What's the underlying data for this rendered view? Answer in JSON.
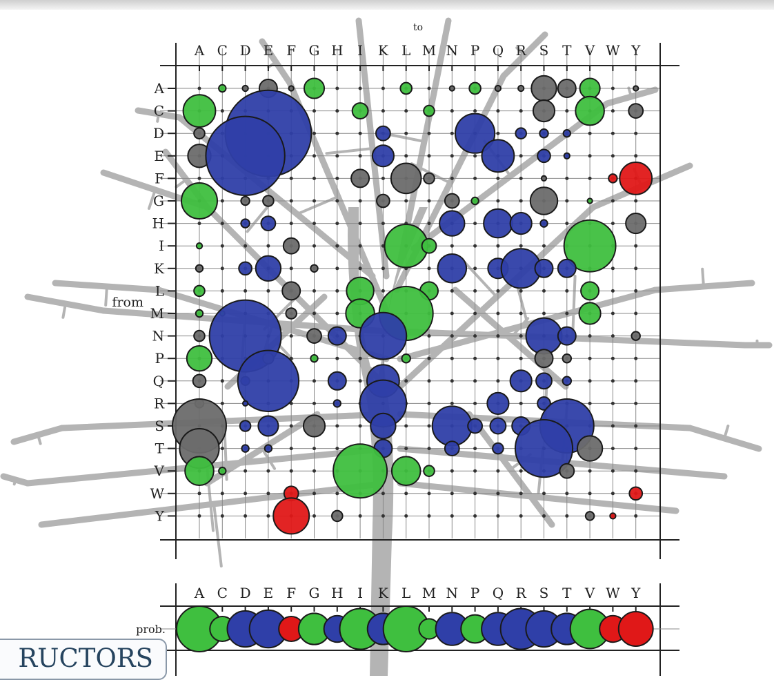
{
  "page_tab": {
    "label": "RUCTORS"
  },
  "chart_data": [
    {
      "type": "scatter",
      "title": "",
      "xlabel": "to",
      "ylabel": "from",
      "columns": [
        "A",
        "C",
        "D",
        "E",
        "F",
        "G",
        "H",
        "I",
        "K",
        "L",
        "M",
        "N",
        "P",
        "Q",
        "R",
        "S",
        "T",
        "V",
        "W",
        "Y"
      ],
      "rows": [
        "A",
        "C",
        "D",
        "E",
        "F",
        "G",
        "H",
        "I",
        "K",
        "L",
        "M",
        "N",
        "P",
        "Q",
        "R",
        "S",
        "T",
        "V",
        "W",
        "Y"
      ],
      "grid": true,
      "colors": {
        "green": "#3fbf3f",
        "blue": "#2f3fa8",
        "gray": "#6b6b6b",
        "red": "#e01818",
        "tree": "#b4b4b4"
      },
      "points": [
        [
          "A",
          "C",
          0.1,
          "green"
        ],
        [
          "A",
          "D",
          0.08,
          "gray"
        ],
        [
          "A",
          "E",
          0.25,
          "gray"
        ],
        [
          "A",
          "F",
          0.07,
          "gray"
        ],
        [
          "A",
          "G",
          0.28,
          "green"
        ],
        [
          "A",
          "L",
          0.16,
          "green"
        ],
        [
          "A",
          "N",
          0.07,
          "gray"
        ],
        [
          "A",
          "P",
          0.16,
          "green"
        ],
        [
          "A",
          "Q",
          0.08,
          "gray"
        ],
        [
          "A",
          "R",
          0.08,
          "gray"
        ],
        [
          "A",
          "S",
          0.35,
          "gray"
        ],
        [
          "A",
          "T",
          0.25,
          "gray"
        ],
        [
          "A",
          "V",
          0.28,
          "green"
        ],
        [
          "A",
          "Y",
          0.07,
          "gray"
        ],
        [
          "C",
          "A",
          0.45,
          "green"
        ],
        [
          "C",
          "I",
          0.22,
          "green"
        ],
        [
          "C",
          "M",
          0.15,
          "green"
        ],
        [
          "C",
          "S",
          0.3,
          "gray"
        ],
        [
          "C",
          "V",
          0.4,
          "green"
        ],
        [
          "C",
          "Y",
          0.2,
          "gray"
        ],
        [
          "D",
          "A",
          0.15,
          "gray"
        ],
        [
          "D",
          "E",
          1.2,
          "blue"
        ],
        [
          "D",
          "K",
          0.2,
          "blue"
        ],
        [
          "D",
          "P",
          0.55,
          "blue"
        ],
        [
          "D",
          "R",
          0.15,
          "blue"
        ],
        [
          "D",
          "S",
          0.12,
          "blue"
        ],
        [
          "D",
          "T",
          0.1,
          "blue"
        ],
        [
          "E",
          "A",
          0.32,
          "gray"
        ],
        [
          "E",
          "D",
          1.1,
          "blue"
        ],
        [
          "E",
          "K",
          0.3,
          "blue"
        ],
        [
          "E",
          "Q",
          0.45,
          "blue"
        ],
        [
          "E",
          "S",
          0.18,
          "blue"
        ],
        [
          "E",
          "T",
          0.08,
          "blue"
        ],
        [
          "F",
          "I",
          0.25,
          "gray"
        ],
        [
          "F",
          "L",
          0.42,
          "gray"
        ],
        [
          "F",
          "M",
          0.15,
          "gray"
        ],
        [
          "F",
          "S",
          0.07,
          "gray"
        ],
        [
          "F",
          "W",
          0.12,
          "red"
        ],
        [
          "F",
          "Y",
          0.45,
          "red"
        ],
        [
          "G",
          "A",
          0.5,
          "green"
        ],
        [
          "G",
          "D",
          0.12,
          "gray"
        ],
        [
          "G",
          "E",
          0.15,
          "gray"
        ],
        [
          "G",
          "K",
          0.18,
          "gray"
        ],
        [
          "G",
          "N",
          0.2,
          "gray"
        ],
        [
          "G",
          "P",
          0.1,
          "green"
        ],
        [
          "G",
          "S",
          0.38,
          "gray"
        ],
        [
          "G",
          "V",
          0.07,
          "green"
        ],
        [
          "H",
          "D",
          0.12,
          "blue"
        ],
        [
          "H",
          "E",
          0.2,
          "blue"
        ],
        [
          "H",
          "N",
          0.35,
          "blue"
        ],
        [
          "H",
          "Q",
          0.4,
          "blue"
        ],
        [
          "H",
          "R",
          0.3,
          "blue"
        ],
        [
          "H",
          "S",
          0.1,
          "blue"
        ],
        [
          "H",
          "Y",
          0.28,
          "gray"
        ],
        [
          "I",
          "A",
          0.08,
          "green"
        ],
        [
          "I",
          "F",
          0.22,
          "gray"
        ],
        [
          "I",
          "L",
          0.6,
          "green"
        ],
        [
          "I",
          "M",
          0.2,
          "green"
        ],
        [
          "I",
          "V",
          0.72,
          "green"
        ],
        [
          "K",
          "A",
          0.1,
          "gray"
        ],
        [
          "K",
          "D",
          0.18,
          "blue"
        ],
        [
          "K",
          "E",
          0.35,
          "blue"
        ],
        [
          "K",
          "G",
          0.1,
          "gray"
        ],
        [
          "K",
          "N",
          0.4,
          "blue"
        ],
        [
          "K",
          "Q",
          0.28,
          "blue"
        ],
        [
          "K",
          "R",
          0.55,
          "blue"
        ],
        [
          "K",
          "S",
          0.25,
          "blue"
        ],
        [
          "K",
          "T",
          0.25,
          "blue"
        ],
        [
          "L",
          "A",
          0.15,
          "green"
        ],
        [
          "L",
          "F",
          0.25,
          "gray"
        ],
        [
          "L",
          "I",
          0.38,
          "green"
        ],
        [
          "L",
          "M",
          0.25,
          "green"
        ],
        [
          "L",
          "V",
          0.25,
          "green"
        ],
        [
          "M",
          "A",
          0.1,
          "green"
        ],
        [
          "M",
          "C",
          0.07,
          "green"
        ],
        [
          "M",
          "F",
          0.15,
          "gray"
        ],
        [
          "M",
          "I",
          0.4,
          "green"
        ],
        [
          "M",
          "L",
          0.75,
          "green"
        ],
        [
          "M",
          "V",
          0.3,
          "green"
        ],
        [
          "N",
          "A",
          0.15,
          "gray"
        ],
        [
          "N",
          "D",
          1.0,
          "blue"
        ],
        [
          "N",
          "G",
          0.2,
          "gray"
        ],
        [
          "N",
          "H",
          0.25,
          "blue"
        ],
        [
          "N",
          "K",
          0.65,
          "blue"
        ],
        [
          "N",
          "S",
          0.5,
          "blue"
        ],
        [
          "N",
          "T",
          0.25,
          "blue"
        ],
        [
          "N",
          "Y",
          0.12,
          "gray"
        ],
        [
          "P",
          "A",
          0.35,
          "green"
        ],
        [
          "P",
          "E",
          0.15,
          "gray"
        ],
        [
          "P",
          "G",
          0.1,
          "green"
        ],
        [
          "P",
          "L",
          0.12,
          "green"
        ],
        [
          "P",
          "S",
          0.25,
          "gray"
        ],
        [
          "P",
          "T",
          0.12,
          "gray"
        ],
        [
          "Q",
          "A",
          0.18,
          "gray"
        ],
        [
          "Q",
          "D",
          0.12,
          "blue"
        ],
        [
          "Q",
          "E",
          0.85,
          "blue"
        ],
        [
          "Q",
          "H",
          0.25,
          "blue"
        ],
        [
          "Q",
          "K",
          0.45,
          "blue"
        ],
        [
          "Q",
          "R",
          0.3,
          "blue"
        ],
        [
          "Q",
          "S",
          0.22,
          "blue"
        ],
        [
          "Q",
          "T",
          0.12,
          "blue"
        ],
        [
          "R",
          "A",
          0.12,
          "gray"
        ],
        [
          "R",
          "D",
          0.07,
          "blue"
        ],
        [
          "R",
          "H",
          0.1,
          "blue"
        ],
        [
          "R",
          "K",
          0.65,
          "blue"
        ],
        [
          "R",
          "Q",
          0.3,
          "blue"
        ],
        [
          "R",
          "S",
          0.18,
          "blue"
        ],
        [
          "S",
          "A",
          0.75,
          "gray"
        ],
        [
          "S",
          "D",
          0.15,
          "blue"
        ],
        [
          "S",
          "E",
          0.28,
          "blue"
        ],
        [
          "S",
          "G",
          0.3,
          "gray"
        ],
        [
          "S",
          "K",
          0.35,
          "blue"
        ],
        [
          "S",
          "N",
          0.55,
          "blue"
        ],
        [
          "S",
          "P",
          0.2,
          "blue"
        ],
        [
          "S",
          "Q",
          0.22,
          "blue"
        ],
        [
          "S",
          "R",
          0.25,
          "blue"
        ],
        [
          "S",
          "T",
          0.75,
          "blue"
        ],
        [
          "T",
          "A",
          0.55,
          "gray"
        ],
        [
          "T",
          "D",
          0.1,
          "blue"
        ],
        [
          "T",
          "E",
          0.1,
          "blue"
        ],
        [
          "T",
          "K",
          0.25,
          "blue"
        ],
        [
          "T",
          "N",
          0.2,
          "blue"
        ],
        [
          "T",
          "Q",
          0.15,
          "blue"
        ],
        [
          "T",
          "S",
          0.8,
          "blue"
        ],
        [
          "T",
          "V",
          0.35,
          "gray"
        ],
        [
          "V",
          "A",
          0.4,
          "green"
        ],
        [
          "V",
          "C",
          0.1,
          "green"
        ],
        [
          "V",
          "I",
          0.75,
          "green"
        ],
        [
          "V",
          "L",
          0.4,
          "green"
        ],
        [
          "V",
          "M",
          0.15,
          "green"
        ],
        [
          "V",
          "T",
          0.2,
          "gray"
        ],
        [
          "W",
          "F",
          0.2,
          "red"
        ],
        [
          "W",
          "Y",
          0.18,
          "red"
        ],
        [
          "Y",
          "F",
          0.5,
          "red"
        ],
        [
          "Y",
          "H",
          0.15,
          "gray"
        ],
        [
          "Y",
          "V",
          0.12,
          "gray"
        ],
        [
          "Y",
          "W",
          0.08,
          "red"
        ]
      ]
    },
    {
      "type": "scatter",
      "title": "",
      "ylabel": "prob.",
      "categories": [
        "A",
        "C",
        "D",
        "E",
        "F",
        "G",
        "H",
        "I",
        "K",
        "L",
        "M",
        "N",
        "P",
        "Q",
        "R",
        "S",
        "T",
        "V",
        "W",
        "Y"
      ],
      "values": [
        1.0,
        0.35,
        0.7,
        0.75,
        0.35,
        0.55,
        0.4,
        0.85,
        0.55,
        1.0,
        0.2,
        0.6,
        0.45,
        0.6,
        0.85,
        0.7,
        0.55,
        0.8,
        0.4,
        0.65
      ],
      "point_colors": [
        "green",
        "green",
        "blue",
        "blue",
        "red",
        "green",
        "blue",
        "green",
        "blue",
        "green",
        "green",
        "blue",
        "green",
        "blue",
        "blue",
        "blue",
        "blue",
        "green",
        "red",
        "red"
      ]
    }
  ]
}
